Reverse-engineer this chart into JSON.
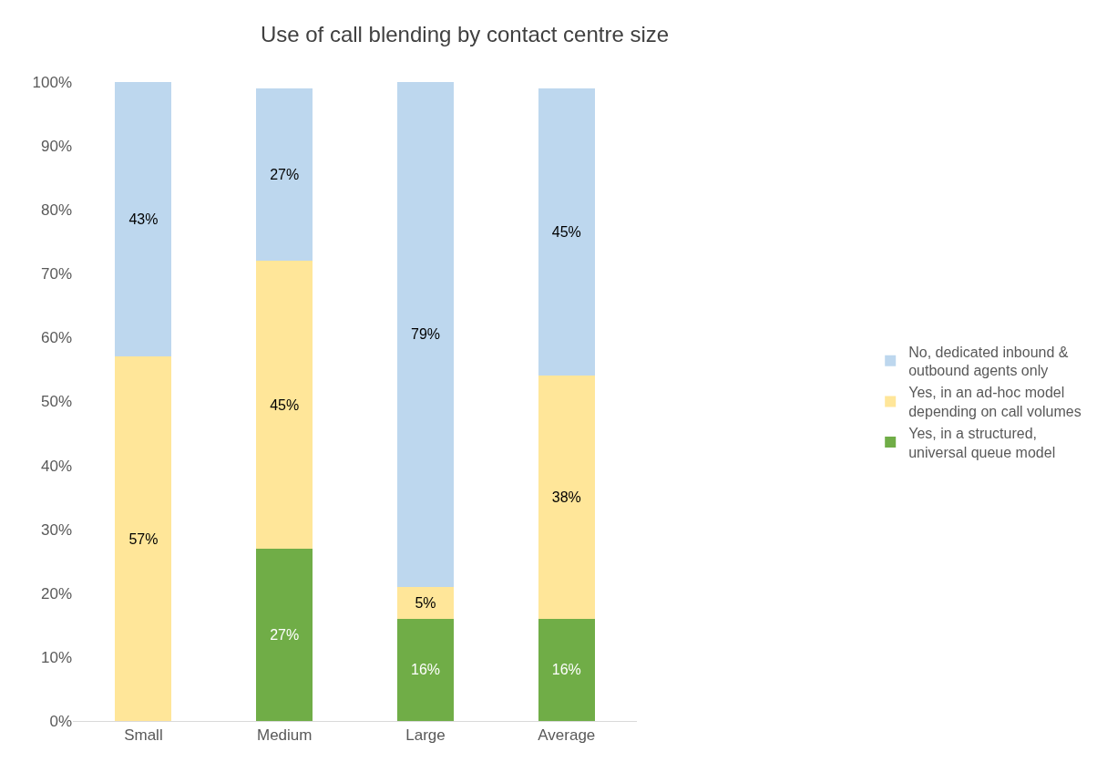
{
  "chart_data": {
    "type": "bar",
    "title": "Use of call blending by contact centre size",
    "categories": [
      "Small",
      "Medium",
      "Large",
      "Average"
    ],
    "stacked": true,
    "series": [
      {
        "name": "Yes, in a structured, universal queue model",
        "color": "#70ad47",
        "values": [
          0,
          27,
          16,
          16
        ],
        "value_labels": [
          null,
          "27%",
          "16%",
          "16%"
        ]
      },
      {
        "name": "Yes, in an ad-hoc model depending on call volumes",
        "color": "#ffe699",
        "values": [
          57,
          45,
          5,
          38
        ],
        "value_labels": [
          "57%",
          "45%",
          "5%",
          "38%"
        ]
      },
      {
        "name": "No, dedicated inbound & outbound agents only",
        "color": "#bdd7ee",
        "values": [
          43,
          27,
          79,
          45
        ],
        "value_labels": [
          "43%",
          "27%",
          "79%",
          "45%"
        ]
      }
    ],
    "ylim": [
      0,
      100
    ],
    "yticks": [
      {
        "value": 0,
        "label": "0%"
      },
      {
        "value": 10,
        "label": "10%"
      },
      {
        "value": 20,
        "label": "20%"
      },
      {
        "value": 30,
        "label": "30%"
      },
      {
        "value": 40,
        "label": "40%"
      },
      {
        "value": 50,
        "label": "50%"
      },
      {
        "value": 60,
        "label": "60%"
      },
      {
        "value": 70,
        "label": "70%"
      },
      {
        "value": 80,
        "label": "80%"
      },
      {
        "value": 90,
        "label": "90%"
      },
      {
        "value": 100,
        "label": "100%"
      }
    ],
    "grid": false,
    "legend": "right"
  }
}
